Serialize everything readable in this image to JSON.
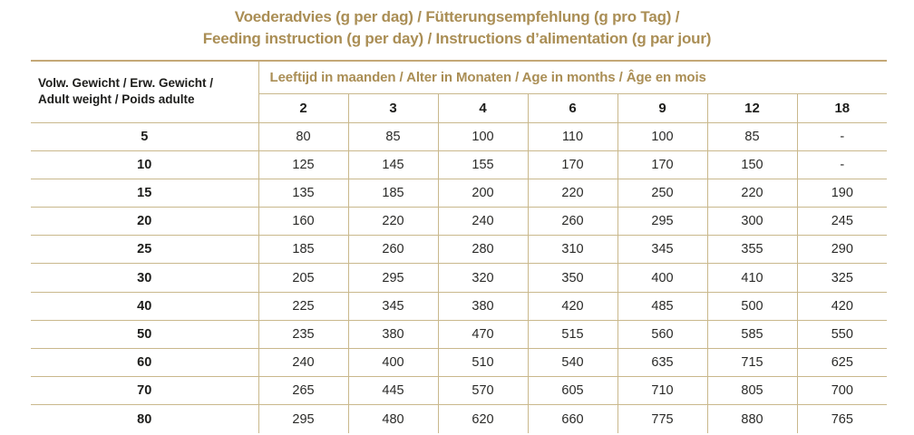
{
  "title": {
    "line1": "Voederadvies (g per dag) / Fütterungsempfehlung (g pro Tag) /",
    "line2": "Feeding instruction (g per day) / Instructions d’alimentation (g par jour)"
  },
  "colors": {
    "gold_text": "#aa8e55",
    "grid_line": "#c9b88c",
    "top_rule": "#c4a877",
    "black_text": "#1d1d1b",
    "background": "#ffffff"
  },
  "chart_data": {
    "type": "table",
    "title": "Voederadvies (g per dag) / Fütterungsempfehlung (g pro Tag) / Feeding instruction (g per day) / Instructions d’alimentation (g par jour)",
    "row_header_lines": [
      "Volw. Gewicht / Erw. Gewicht /",
      "Adult weight / Poids adulte"
    ],
    "column_group_label": "Leeftijd in maanden / Alter in Monaten / Age in months / Âge en mois",
    "age_columns": [
      "2",
      "3",
      "4",
      "6",
      "9",
      "12",
      "18"
    ],
    "rows": [
      {
        "weight": "5",
        "values": [
          "80",
          "85",
          "100",
          "110",
          "100",
          "85",
          "-"
        ]
      },
      {
        "weight": "10",
        "values": [
          "125",
          "145",
          "155",
          "170",
          "170",
          "150",
          "-"
        ]
      },
      {
        "weight": "15",
        "values": [
          "135",
          "185",
          "200",
          "220",
          "250",
          "220",
          "190"
        ]
      },
      {
        "weight": "20",
        "values": [
          "160",
          "220",
          "240",
          "260",
          "295",
          "300",
          "245"
        ]
      },
      {
        "weight": "25",
        "values": [
          "185",
          "260",
          "280",
          "310",
          "345",
          "355",
          "290"
        ]
      },
      {
        "weight": "30",
        "values": [
          "205",
          "295",
          "320",
          "350",
          "400",
          "410",
          "325"
        ]
      },
      {
        "weight": "40",
        "values": [
          "225",
          "345",
          "380",
          "420",
          "485",
          "500",
          "420"
        ]
      },
      {
        "weight": "50",
        "values": [
          "235",
          "380",
          "470",
          "515",
          "560",
          "585",
          "550"
        ]
      },
      {
        "weight": "60",
        "values": [
          "240",
          "400",
          "510",
          "540",
          "635",
          "715",
          "625"
        ]
      },
      {
        "weight": "70",
        "values": [
          "265",
          "445",
          "570",
          "605",
          "710",
          "805",
          "700"
        ]
      },
      {
        "weight": "80",
        "values": [
          "295",
          "480",
          "620",
          "660",
          "775",
          "880",
          "765"
        ]
      }
    ]
  }
}
